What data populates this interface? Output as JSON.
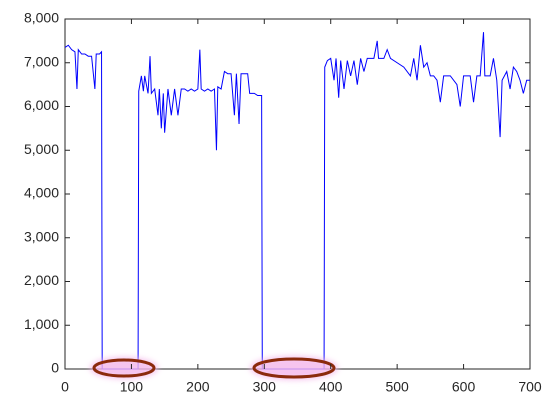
{
  "chart_data": {
    "type": "line",
    "color": "#0000ff",
    "xlim": [
      0,
      700
    ],
    "xticks": [
      0,
      100,
      200,
      300,
      400,
      500,
      600,
      700
    ],
    "ylim": [
      0,
      8000
    ],
    "yticks": [
      0,
      {
        "value": 1000,
        "label": "1,000"
      },
      {
        "value": 2000,
        "label": "2,000"
      },
      {
        "value": 3000,
        "label": "3,000"
      },
      {
        "value": 4000,
        "label": "4,000"
      },
      {
        "value": 5000,
        "label": "5,000"
      },
      {
        "value": 6000,
        "label": "6,000"
      },
      {
        "value": 7000,
        "label": "7,000"
      },
      {
        "value": 8000,
        "label": "8,000"
      }
    ],
    "x": [
      0,
      5,
      10,
      15,
      18,
      20,
      25,
      30,
      35,
      40,
      45,
      47,
      52,
      55,
      56,
      110,
      111,
      115,
      118,
      120,
      125,
      128,
      130,
      135,
      140,
      142,
      145,
      148,
      150,
      155,
      160,
      165,
      170,
      175,
      180,
      185,
      190,
      195,
      200,
      203,
      205,
      210,
      215,
      220,
      225,
      228,
      230,
      235,
      240,
      245,
      250,
      255,
      258,
      262,
      265,
      275,
      278,
      285,
      290,
      296,
      297,
      390,
      391,
      395,
      400,
      405,
      408,
      412,
      415,
      420,
      425,
      430,
      435,
      440,
      445,
      450,
      455,
      460,
      465,
      470,
      472,
      480,
      485,
      490,
      500,
      510,
      520,
      525,
      530,
      535,
      540,
      545,
      550,
      555,
      560,
      565,
      570,
      580,
      590,
      595,
      600,
      605,
      610,
      615,
      620,
      625,
      630,
      632,
      640,
      645,
      650,
      655,
      658,
      665,
      670,
      675,
      680,
      685,
      690,
      695,
      700
    ],
    "values": [
      7350,
      7400,
      7300,
      7250,
      6400,
      7300,
      7200,
      7200,
      7150,
      7150,
      6400,
      7200,
      7200,
      7250,
      0,
      0,
      6350,
      6700,
      6350,
      6700,
      6300,
      7150,
      6300,
      6400,
      5800,
      6400,
      5500,
      6300,
      5400,
      6400,
      5800,
      6400,
      5800,
      6400,
      6400,
      6350,
      6400,
      6350,
      6400,
      7300,
      6400,
      6350,
      6400,
      6350,
      6400,
      5000,
      6450,
      6400,
      6800,
      6750,
      6750,
      5800,
      6750,
      5600,
      6750,
      6750,
      6300,
      6300,
      6250,
      6250,
      0,
      0,
      6900,
      7050,
      7100,
      6600,
      7100,
      6200,
      7050,
      6400,
      7050,
      6700,
      7050,
      6500,
      7100,
      6800,
      7100,
      7100,
      7100,
      7500,
      7100,
      7100,
      7300,
      7100,
      7000,
      6900,
      6700,
      7100,
      6600,
      7400,
      6900,
      7000,
      6700,
      6700,
      6600,
      6100,
      6700,
      6700,
      6500,
      6000,
      6700,
      6700,
      6700,
      6100,
      6700,
      6700,
      7700,
      6700,
      6700,
      7100,
      6600,
      5300,
      6600,
      6800,
      6400,
      6900,
      6800,
      6600,
      6300,
      6600,
      6600
    ]
  }
}
